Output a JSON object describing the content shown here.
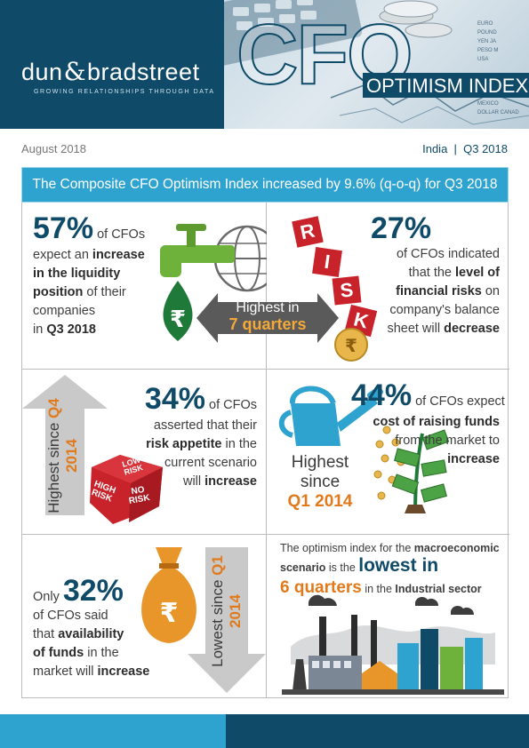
{
  "header": {
    "logo_left": "dun",
    "logo_amp": "&",
    "logo_right": "bradstreet",
    "tagline": "GROWING RELATIONSHIPS THROUGH DATA",
    "cfo": "CFO",
    "optimism_index": "OPTIMISM INDEX"
  },
  "subheader": {
    "date": "August 2018",
    "region": "India  |  Q3 2018"
  },
  "banner": {
    "text": "The Composite CFO Optimism Index increased by 9.6% (q-o-q) for Q3 2018"
  },
  "panels": {
    "liquidity": {
      "pct": "57%",
      "t1": " of CFOs",
      "t2": "expect an ",
      "t2b": "increase",
      "t3b": "in the liquidity",
      "t4b": "position",
      "t4": " of their",
      "t5": "companies",
      "t6": "in ",
      "t6b": "Q3 2018"
    },
    "highest": {
      "line1": "Highest in",
      "line2": "7 quarters"
    },
    "risk_letters": [
      "R",
      "I",
      "S",
      "K"
    ],
    "risk": {
      "pct": "27%",
      "t1": "of CFOs indicated",
      "t2": "that the ",
      "t2b": "level of",
      "t3b": "financial risks",
      "t3": " on",
      "t4": "company's balance",
      "t5": "sheet will ",
      "t5b": "decrease"
    },
    "appetite": {
      "side1": "Highest since",
      "side2": "Q4 2014",
      "pct": "34%",
      "t1": " of CFOs",
      "t2": "asserted that their",
      "t3b": "risk appetite",
      "t3": " in the",
      "t4": "current scenario",
      "t5": "will ",
      "t5b": "increase",
      "dice_low": "LOW RISK",
      "dice_high": "HIGH RISK",
      "dice_no": "NO RISK"
    },
    "funds_cost": {
      "pct": "44%",
      "t1": " of CFOs expect",
      "t2b": "cost of raising funds",
      "t3": "from the market to",
      "t4b": "increase",
      "h1": "Highest",
      "h2": "since",
      "h3": "Q1 2014"
    },
    "availability": {
      "only": "Only",
      "pct": "32%",
      "t1": "of CFOs said",
      "t2": "that ",
      "t2b": "availability",
      "t3b": "of funds",
      "t3": " in the",
      "t4": "market will ",
      "t4b": "increase",
      "side1": "Lowest since",
      "side2": "Q1 2014"
    },
    "macro": {
      "t1": "The optimism index for the ",
      "t1b": "macroeconomic",
      "t2b": "scenario",
      "t2": " is the ",
      "t2big": "lowest",
      "t2c": " in",
      "t3big": "6 quarters",
      "t3": " in the ",
      "t3b": "Industrial sector"
    }
  },
  "colors": {
    "navy": "#0f4a68",
    "blue": "#2fa3cf",
    "orange": "#e07a1c",
    "green": "#1f7a3a",
    "grey": "#5a5a5a",
    "red": "#c8232b"
  }
}
